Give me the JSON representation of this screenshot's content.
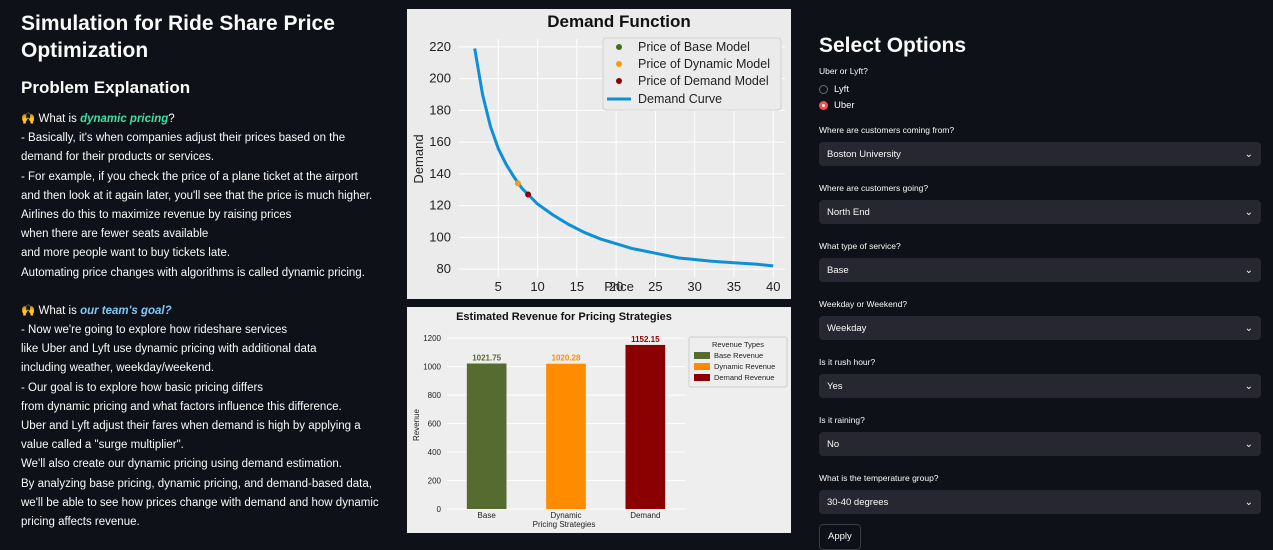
{
  "app_title": "Simulation for Ride Share Price Optimization",
  "problem_heading": "Problem Explanation",
  "problem": {
    "q1_prefix": "🙌 What is ",
    "q1_highlight": "dynamic pricing",
    "q1_suffix": "?",
    "lines1": [
      "- Basically, it's when companies adjust their prices based on the",
      "demand for their products or services.",
      "- For example, if you check the price of a plane ticket at the airport",
      "and then look at it again later, you'll see that the price is much higher.",
      "Airlines do this to maximize revenue by raising prices",
      "when there are fewer seats available",
      "and more people want to buy tickets late.",
      "Automating price changes with algorithms is called dynamic pricing."
    ],
    "q2_prefix": "🙌 What is ",
    "q2_highlight": "our team's goal?",
    "lines2": [
      "- Now we're going to explore how rideshare services",
      "like Uber and Lyft use dynamic pricing with additional data",
      "including weather, weekday/weekend.",
      "- Our goal is to explore how basic pricing differs",
      "from dynamic pricing and what factors influence this difference.",
      "Uber and Lyft adjust their fares when demand is high by applying a",
      "value called a \"surge multiplier\".",
      "We'll also create our dynamic pricing using demand estimation.",
      "By analyzing base pricing, dynamic pricing, and demand-based data,",
      "we'll be able to see how prices change with demand and how dynamic",
      "pricing affects revenue."
    ]
  },
  "options": {
    "title": "Select Options",
    "provider_label": "Uber or Lyft?",
    "provider_options": [
      "Lyft",
      "Uber"
    ],
    "provider_selected": "Uber",
    "selects": [
      {
        "label": "Where are customers coming from?",
        "value": "Boston University"
      },
      {
        "label": "Where are customers going?",
        "value": "North End"
      },
      {
        "label": "What type of service?",
        "value": "Base"
      },
      {
        "label": "Weekday or Weekend?",
        "value": "Weekday"
      },
      {
        "label": "Is it rush hour?",
        "value": "Yes"
      },
      {
        "label": "Is it raining?",
        "value": "No"
      },
      {
        "label": "What is the temperature group?",
        "value": "30-40 degrees"
      }
    ],
    "apply_label": "Apply"
  },
  "chart_data": [
    {
      "type": "line",
      "title": "Demand Function",
      "xlabel": "Price",
      "ylabel": "Demand",
      "xlim": [
        0,
        41.5
      ],
      "ylim": [
        75,
        225
      ],
      "xticks": [
        5,
        10,
        15,
        20,
        25,
        30,
        35,
        40
      ],
      "yticks": [
        80,
        100,
        120,
        140,
        160,
        180,
        200,
        220
      ],
      "grid": true,
      "legend_position": "top-right",
      "curve": {
        "name": "Demand Curve",
        "color": "#0e8fd6",
        "x": [
          2,
          3,
          4,
          5,
          6,
          7,
          8,
          9,
          10,
          12,
          14,
          16,
          18,
          20,
          22,
          25,
          28,
          30,
          32,
          35,
          38,
          40
        ],
        "y": [
          219,
          190,
          170,
          156,
          146,
          138,
          131,
          126,
          121,
          114,
          108,
          103,
          99,
          96,
          93,
          90,
          87,
          86,
          85,
          84,
          83,
          82
        ]
      },
      "points": [
        {
          "name": "Price of Base Model",
          "color": "#4a6a1e",
          "x": null,
          "y": null
        },
        {
          "name": "Price of Dynamic Model",
          "color": "#f39c12",
          "x": 7.5,
          "y": 134
        },
        {
          "name": "Price of Demand Model",
          "color": "#8b0000",
          "x": 8.8,
          "y": 127
        }
      ]
    },
    {
      "type": "bar",
      "title": "Estimated Revenue for Pricing Strategies",
      "xlabel": "Pricing Strategies",
      "ylabel": "Revenue",
      "ylim": [
        0,
        1250
      ],
      "yticks": [
        0,
        200,
        400,
        600,
        800,
        1000,
        1200
      ],
      "categories": [
        "Base",
        "Dynamic",
        "Demand"
      ],
      "values": [
        1021.75,
        1020.28,
        1152.15
      ],
      "value_labels": [
        "1021.75",
        "1020.28",
        "1152.15"
      ],
      "colors": [
        "#556b2f",
        "#ff8c00",
        "#8b0000"
      ],
      "legend_title": "Revenue Types",
      "legend": [
        "Base Revenue",
        "Dynamic Revenue",
        "Demand Revenue"
      ],
      "legend_position": "top-right"
    }
  ]
}
